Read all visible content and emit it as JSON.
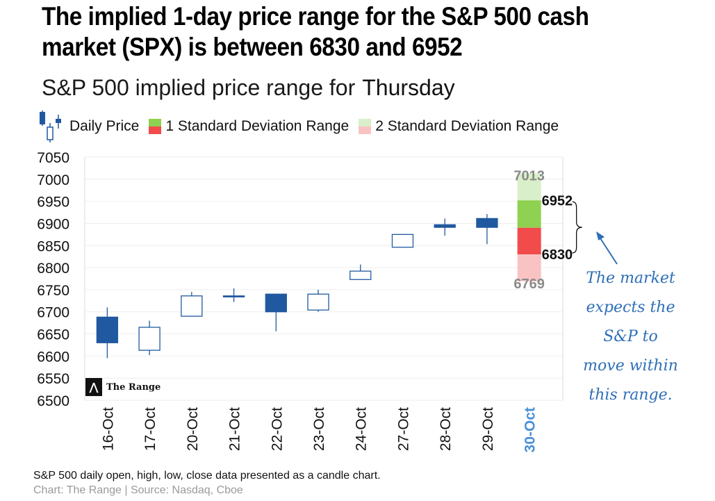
{
  "headline": "The implied 1-day price range for the S&P 500 cash market (SPX) is between 6830 and 6952",
  "subtitle": {
    "text": "S&P 500 implied price range for",
    "day": "Thursday"
  },
  "legend": {
    "daily_price": "Daily Price",
    "one_sd": "1 Standard Deviation Range",
    "two_sd": "2 Standard Deviation Range"
  },
  "note": "The market expects the S&P to move within this range.",
  "caption": "S&P 500 daily open, high, low, close data presented as a candle chart.",
  "credit": "Chart: The Range | Source: Nasdaq, Cboe",
  "logo": {
    "icon": "range-logo-icon",
    "text": "The Range"
  },
  "colors": {
    "down_candle": "#2159a0",
    "up_candle_border": "#2159a0",
    "one_sd_upper": "#8fd150",
    "one_sd_lower": "#f14b4b",
    "two_sd_upper": "#d9efc9",
    "two_sd_lower": "#f9c3c3",
    "highlight_label": "#4a90d9",
    "annotation": "#2e6fb7"
  },
  "chart_data": {
    "type": "candlestick",
    "title": "S&P 500 implied price range for Thursday",
    "ylim": [
      6500,
      7050
    ],
    "yticks": [
      6500,
      6550,
      6600,
      6650,
      6700,
      6750,
      6800,
      6850,
      6900,
      6950,
      7000,
      7050
    ],
    "grid": true,
    "legend_position": "top",
    "candles": [
      {
        "date": "16-Oct",
        "open": 6688,
        "high": 6710,
        "low": 6595,
        "close": 6630
      },
      {
        "date": "17-Oct",
        "open": 6613,
        "high": 6680,
        "low": 6602,
        "close": 6665
      },
      {
        "date": "20-Oct",
        "open": 6690,
        "high": 6745,
        "low": 6690,
        "close": 6736
      },
      {
        "date": "21-Oct",
        "open": 6736,
        "high": 6753,
        "low": 6722,
        "close": 6735
      },
      {
        "date": "22-Oct",
        "open": 6740,
        "high": 6740,
        "low": 6656,
        "close": 6700
      },
      {
        "date": "23-Oct",
        "open": 6704,
        "high": 6750,
        "low": 6700,
        "close": 6740
      },
      {
        "date": "24-Oct",
        "open": 6773,
        "high": 6807,
        "low": 6773,
        "close": 6792
      },
      {
        "date": "27-Oct",
        "open": 6846,
        "high": 6876,
        "low": 6846,
        "close": 6875
      },
      {
        "date": "28-Oct",
        "open": 6897,
        "high": 6911,
        "low": 6872,
        "close": 6891
      },
      {
        "date": "29-Oct",
        "open": 6911,
        "high": 6921,
        "low": 6853,
        "close": 6891
      }
    ],
    "forecast": {
      "date": "30-Oct",
      "two_sd_high": 7013,
      "one_sd_high": 6952,
      "mid": 6890,
      "one_sd_low": 6830,
      "two_sd_low": 6769
    }
  }
}
